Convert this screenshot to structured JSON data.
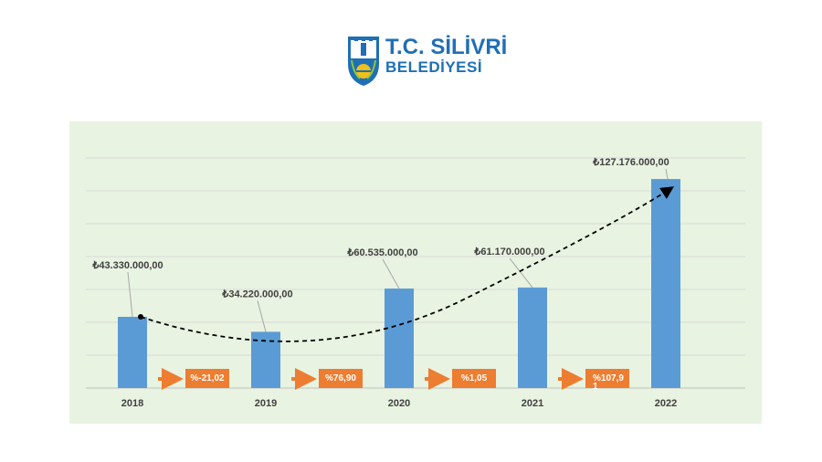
{
  "logo": {
    "line1": "T.C. SİLİVRİ",
    "line2": "BELEDİYESİ"
  },
  "chart_data": {
    "type": "bar",
    "categories": [
      "2018",
      "2019",
      "2020",
      "2021",
      "2022"
    ],
    "values": [
      43330000,
      34220000,
      60535000,
      61170000,
      127176000
    ],
    "data_labels": [
      "₺43.330.000,00",
      "₺34.220.000,00",
      "₺60.535.000,00",
      "₺61.170.000,00",
      "₺127.176.000,00"
    ],
    "change_labels": [
      "%-21,02",
      "%76,90",
      "%1,05",
      "%107,9\n1"
    ],
    "ylim": [
      0,
      140000000
    ],
    "grid": true,
    "trendline": "dashed-arrow",
    "colors": {
      "bar": "#5b9bd5",
      "change_box": "#ed7d31",
      "background": "#e8f3e1"
    }
  }
}
